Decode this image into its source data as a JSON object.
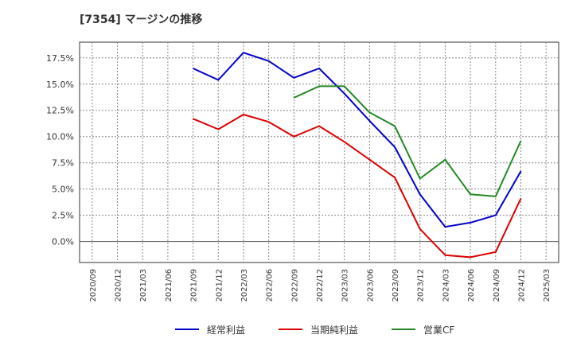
{
  "title": "[7354]  マージンの推移",
  "chart_data": {
    "type": "line",
    "title": "[7354]  マージンの推移",
    "xlabel": "",
    "ylabel": "",
    "ylim": [
      -2.0,
      19.0
    ],
    "grid": true,
    "legend_position": "bottom",
    "categories": [
      "2020/09",
      "2020/12",
      "2021/03",
      "2021/06",
      "2021/09",
      "2021/12",
      "2022/03",
      "2022/06",
      "2022/09",
      "2022/12",
      "2023/03",
      "2023/06",
      "2023/09",
      "2023/12",
      "2024/03",
      "2024/06",
      "2024/09",
      "2024/12",
      "2025/03"
    ],
    "y_ticks": [
      0.0,
      2.5,
      5.0,
      7.5,
      10.0,
      12.5,
      15.0,
      17.5
    ],
    "y_tick_labels": [
      "0.0%",
      "2.5%",
      "5.0%",
      "7.5%",
      "10.0%",
      "12.5%",
      "15.0%",
      "17.5%"
    ],
    "series": [
      {
        "name": "経常利益",
        "color": "#0000cc",
        "values": [
          null,
          null,
          null,
          null,
          16.5,
          15.4,
          18.0,
          17.2,
          15.6,
          16.5,
          14.1,
          11.5,
          9.0,
          4.5,
          1.4,
          1.8,
          2.5,
          6.7,
          null
        ]
      },
      {
        "name": "当期純利益",
        "color": "#dd0000",
        "values": [
          null,
          null,
          null,
          null,
          11.7,
          10.7,
          12.1,
          11.4,
          10.0,
          11.0,
          9.5,
          7.8,
          6.1,
          1.2,
          -1.3,
          -1.5,
          -1.0,
          4.1,
          null
        ]
      },
      {
        "name": "営業CF",
        "color": "#228822",
        "values": [
          null,
          null,
          null,
          null,
          null,
          null,
          null,
          null,
          13.7,
          14.8,
          14.8,
          12.3,
          11.0,
          6.0,
          7.8,
          4.5,
          4.3,
          9.6,
          null
        ]
      }
    ]
  }
}
